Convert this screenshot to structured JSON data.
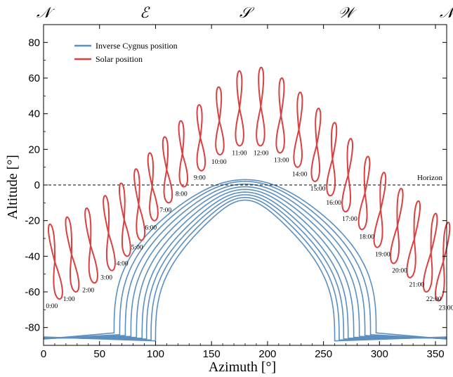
{
  "chart_data": {
    "type": "line",
    "title": "",
    "xlabel": "Azimuth [°]",
    "ylabel": "Altitude [°]",
    "xlim": [
      0,
      360
    ],
    "ylim": [
      -90,
      90
    ],
    "xticks": [
      0,
      50,
      100,
      150,
      200,
      250,
      300,
      350
    ],
    "yticks": [
      -80,
      -60,
      -40,
      -20,
      0,
      20,
      40,
      60,
      80
    ],
    "grid": false,
    "legend_position": "top-left",
    "compass_labels": [
      {
        "text": "𝒩",
        "azimuth": 0
      },
      {
        "text": "ℰ",
        "azimuth": 90
      },
      {
        "text": "𝒮",
        "azimuth": 180
      },
      {
        "text": "𝒲",
        "azimuth": 270
      },
      {
        "text": "𝒩",
        "azimuth": 360
      }
    ],
    "horizon": {
      "label": "Horizon",
      "altitude": 0,
      "style": "dashed"
    },
    "series": [
      {
        "name": "Inverse Cygnus position",
        "color": "#5b8fc0",
        "description": "daily tracks of the point opposite Cygnus",
        "tracks": [
          {
            "peak_alt": 3,
            "bottom_alt": -83,
            "loop_left_az": 98,
            "loop_right_az": 262
          },
          {
            "peak_alt": 2,
            "bottom_alt": -84,
            "loop_left_az": 103,
            "loop_right_az": 257
          },
          {
            "peak_alt": 0.5,
            "bottom_alt": -84.5,
            "loop_left_az": 108,
            "loop_right_az": 252
          },
          {
            "peak_alt": -1,
            "bottom_alt": -85,
            "loop_left_az": 113,
            "loop_right_az": 247
          },
          {
            "peak_alt": -2.5,
            "bottom_alt": -85.5,
            "loop_left_az": 118,
            "loop_right_az": 242
          },
          {
            "peak_alt": -4,
            "bottom_alt": -86,
            "loop_left_az": 123,
            "loop_right_az": 237
          },
          {
            "peak_alt": -5.5,
            "bottom_alt": -86.5,
            "loop_left_az": 127,
            "loop_right_az": 233
          },
          {
            "peak_alt": -7,
            "bottom_alt": -87,
            "loop_left_az": 131,
            "loop_right_az": 229
          },
          {
            "peak_alt": -8.5,
            "bottom_alt": -87.5,
            "loop_left_az": 135,
            "loop_right_az": 225
          }
        ]
      },
      {
        "name": "Solar position",
        "color": "#d94040",
        "description": "analemma at each hour (azimuth, altitude of center; top and bottom altitude)",
        "analemmas": [
          {
            "hour": "0:00",
            "az": 10,
            "alt_top": -22,
            "alt_bottom": -64
          },
          {
            "hour": "1:00",
            "az": 25,
            "alt_top": -18,
            "alt_bottom": -60
          },
          {
            "hour": "2:00",
            "az": 42,
            "alt_top": -13,
            "alt_bottom": -55
          },
          {
            "hour": "3:00",
            "az": 58,
            "alt_top": -6,
            "alt_bottom": -48
          },
          {
            "hour": "4:00",
            "az": 72,
            "alt_top": 1,
            "alt_bottom": -40
          },
          {
            "hour": "5:00",
            "az": 85,
            "alt_top": 9,
            "alt_bottom": -31
          },
          {
            "hour": "6:00",
            "az": 97,
            "alt_top": 18,
            "alt_bottom": -20
          },
          {
            "hour": "7:00",
            "az": 110,
            "alt_top": 27,
            "alt_bottom": -10
          },
          {
            "hour": "8:00",
            "az": 124,
            "alt_top": 36,
            "alt_bottom": -1
          },
          {
            "hour": "9:00",
            "az": 140,
            "alt_top": 45,
            "alt_bottom": 8
          },
          {
            "hour": "10:00",
            "az": 157,
            "alt_top": 55,
            "alt_bottom": 17
          },
          {
            "hour": "11:00",
            "az": 175,
            "alt_top": 64,
            "alt_bottom": 22
          },
          {
            "hour": "12:00",
            "az": 194,
            "alt_top": 66,
            "alt_bottom": 22
          },
          {
            "hour": "13:00",
            "az": 212,
            "alt_top": 60,
            "alt_bottom": 18
          },
          {
            "hour": "14:00",
            "az": 228,
            "alt_top": 52,
            "alt_bottom": 10
          },
          {
            "hour": "15:00",
            "az": 244,
            "alt_top": 43,
            "alt_bottom": 2
          },
          {
            "hour": "16:00",
            "az": 258,
            "alt_top": 35,
            "alt_bottom": -6
          },
          {
            "hour": "17:00",
            "az": 272,
            "alt_top": 26,
            "alt_bottom": -15
          },
          {
            "hour": "18:00",
            "az": 287,
            "alt_top": 16,
            "alt_bottom": -25
          },
          {
            "hour": "19:00",
            "az": 301,
            "alt_top": 7,
            "alt_bottom": -35
          },
          {
            "hour": "20:00",
            "az": 316,
            "alt_top": -2,
            "alt_bottom": -44
          },
          {
            "hour": "21:00",
            "az": 331,
            "alt_top": -9,
            "alt_bottom": -52
          },
          {
            "hour": "22:00",
            "az": 346,
            "alt_top": -16,
            "alt_bottom": -60
          },
          {
            "hour": "23:00",
            "az": 357,
            "alt_top": -21,
            "alt_bottom": -65
          }
        ]
      }
    ]
  }
}
